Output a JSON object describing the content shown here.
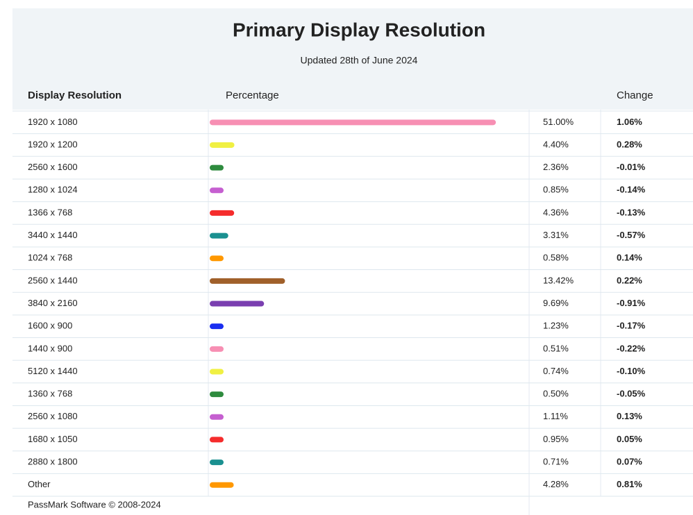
{
  "title": "Primary Display Resolution",
  "subtitle": "Updated 28th of June 2024",
  "table": {
    "headers": [
      "Display Resolution",
      "Percentage",
      "Change"
    ],
    "rows": [
      {
        "resolution": "1920 x 1080",
        "percent": 51.0,
        "percent_label": "51.00%",
        "change": "1.06%",
        "color": "#f78fb3"
      },
      {
        "resolution": "1920 x 1200",
        "percent": 4.4,
        "percent_label": "4.40%",
        "change": "0.28%",
        "color": "#f0f043"
      },
      {
        "resolution": "2560 x 1600",
        "percent": 2.36,
        "percent_label": "2.36%",
        "change": "-0.01%",
        "color": "#2e8b3e"
      },
      {
        "resolution": "1280 x 1024",
        "percent": 0.85,
        "percent_label": "0.85%",
        "change": "-0.14%",
        "color": "#c55fd0"
      },
      {
        "resolution": "1366 x 768",
        "percent": 4.36,
        "percent_label": "4.36%",
        "change": "-0.13%",
        "color": "#f52c2c"
      },
      {
        "resolution": "3440 x 1440",
        "percent": 3.31,
        "percent_label": "3.31%",
        "change": "-0.57%",
        "color": "#1a9090"
      },
      {
        "resolution": "1024 x 768",
        "percent": 0.58,
        "percent_label": "0.58%",
        "change": "0.14%",
        "color": "#ff9800"
      },
      {
        "resolution": "2560 x 1440",
        "percent": 13.42,
        "percent_label": "13.42%",
        "change": "0.22%",
        "color": "#a0602a"
      },
      {
        "resolution": "3840 x 2160",
        "percent": 9.69,
        "percent_label": "9.69%",
        "change": "-0.91%",
        "color": "#7a3fb0"
      },
      {
        "resolution": "1600 x 900",
        "percent": 1.23,
        "percent_label": "1.23%",
        "change": "-0.17%",
        "color": "#1a2ef0"
      },
      {
        "resolution": "1440 x 900",
        "percent": 0.51,
        "percent_label": "0.51%",
        "change": "-0.22%",
        "color": "#f78fb3"
      },
      {
        "resolution": "5120 x 1440",
        "percent": 0.74,
        "percent_label": "0.74%",
        "change": "-0.10%",
        "color": "#f0f043"
      },
      {
        "resolution": "1360 x 768",
        "percent": 0.5,
        "percent_label": "0.50%",
        "change": "-0.05%",
        "color": "#2e8b3e"
      },
      {
        "resolution": "2560 x 1080",
        "percent": 1.11,
        "percent_label": "1.11%",
        "change": "0.13%",
        "color": "#c55fd0"
      },
      {
        "resolution": "1680 x 1050",
        "percent": 0.95,
        "percent_label": "0.95%",
        "change": "0.05%",
        "color": "#f52c2c"
      },
      {
        "resolution": "2880 x 1800",
        "percent": 0.71,
        "percent_label": "0.71%",
        "change": "0.07%",
        "color": "#1a9090"
      },
      {
        "resolution": "Other",
        "percent": 4.28,
        "percent_label": "4.28%",
        "change": "0.81%",
        "color": "#ff9800"
      }
    ]
  },
  "footer": "PassMark Software © 2008-2024"
}
